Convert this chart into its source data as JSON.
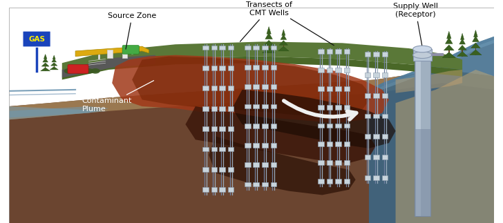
{
  "figsize": [
    7.28,
    3.23
  ],
  "dpi": 100,
  "bg_color": "#ffffff",
  "labels": {
    "source_zone": "Source Zone",
    "transects": "Transects of\nCMT Wells",
    "supply_well": "Supply Well\n(Receptor)",
    "contaminant": "Contaminant\nPlume"
  },
  "colors": {
    "sky": "#ffffff",
    "grass_dark": "#4a6b30",
    "grass_mid": "#5a7a38",
    "grass_light": "#6a8a48",
    "road": "#606060",
    "road_light": "#888888",
    "ground_brown": "#7a5535",
    "ground_dark": "#5a3520",
    "ground_mid": "#8b6040",
    "ground_sandy": "#b09060",
    "plume_dark": "#7a2808",
    "plume_orange": "#c05820",
    "plume_mid": "#a04020",
    "plume_deep_dark": "#2a1808",
    "water_blue": "#3a6888",
    "water_light": "#5a88a8",
    "water_dark": "#2a4860",
    "gas_sign_bg": "#1a44bb",
    "gas_canopy": "#ddaa10",
    "gas_canopy_edge": "#aa8800",
    "annotation_line": "#111111",
    "well_pipe": "#8090a0",
    "well_port": "#c0c8d0",
    "supply_well_body": "#a0b0c0",
    "arrow_white": "#f0f0f0"
  }
}
